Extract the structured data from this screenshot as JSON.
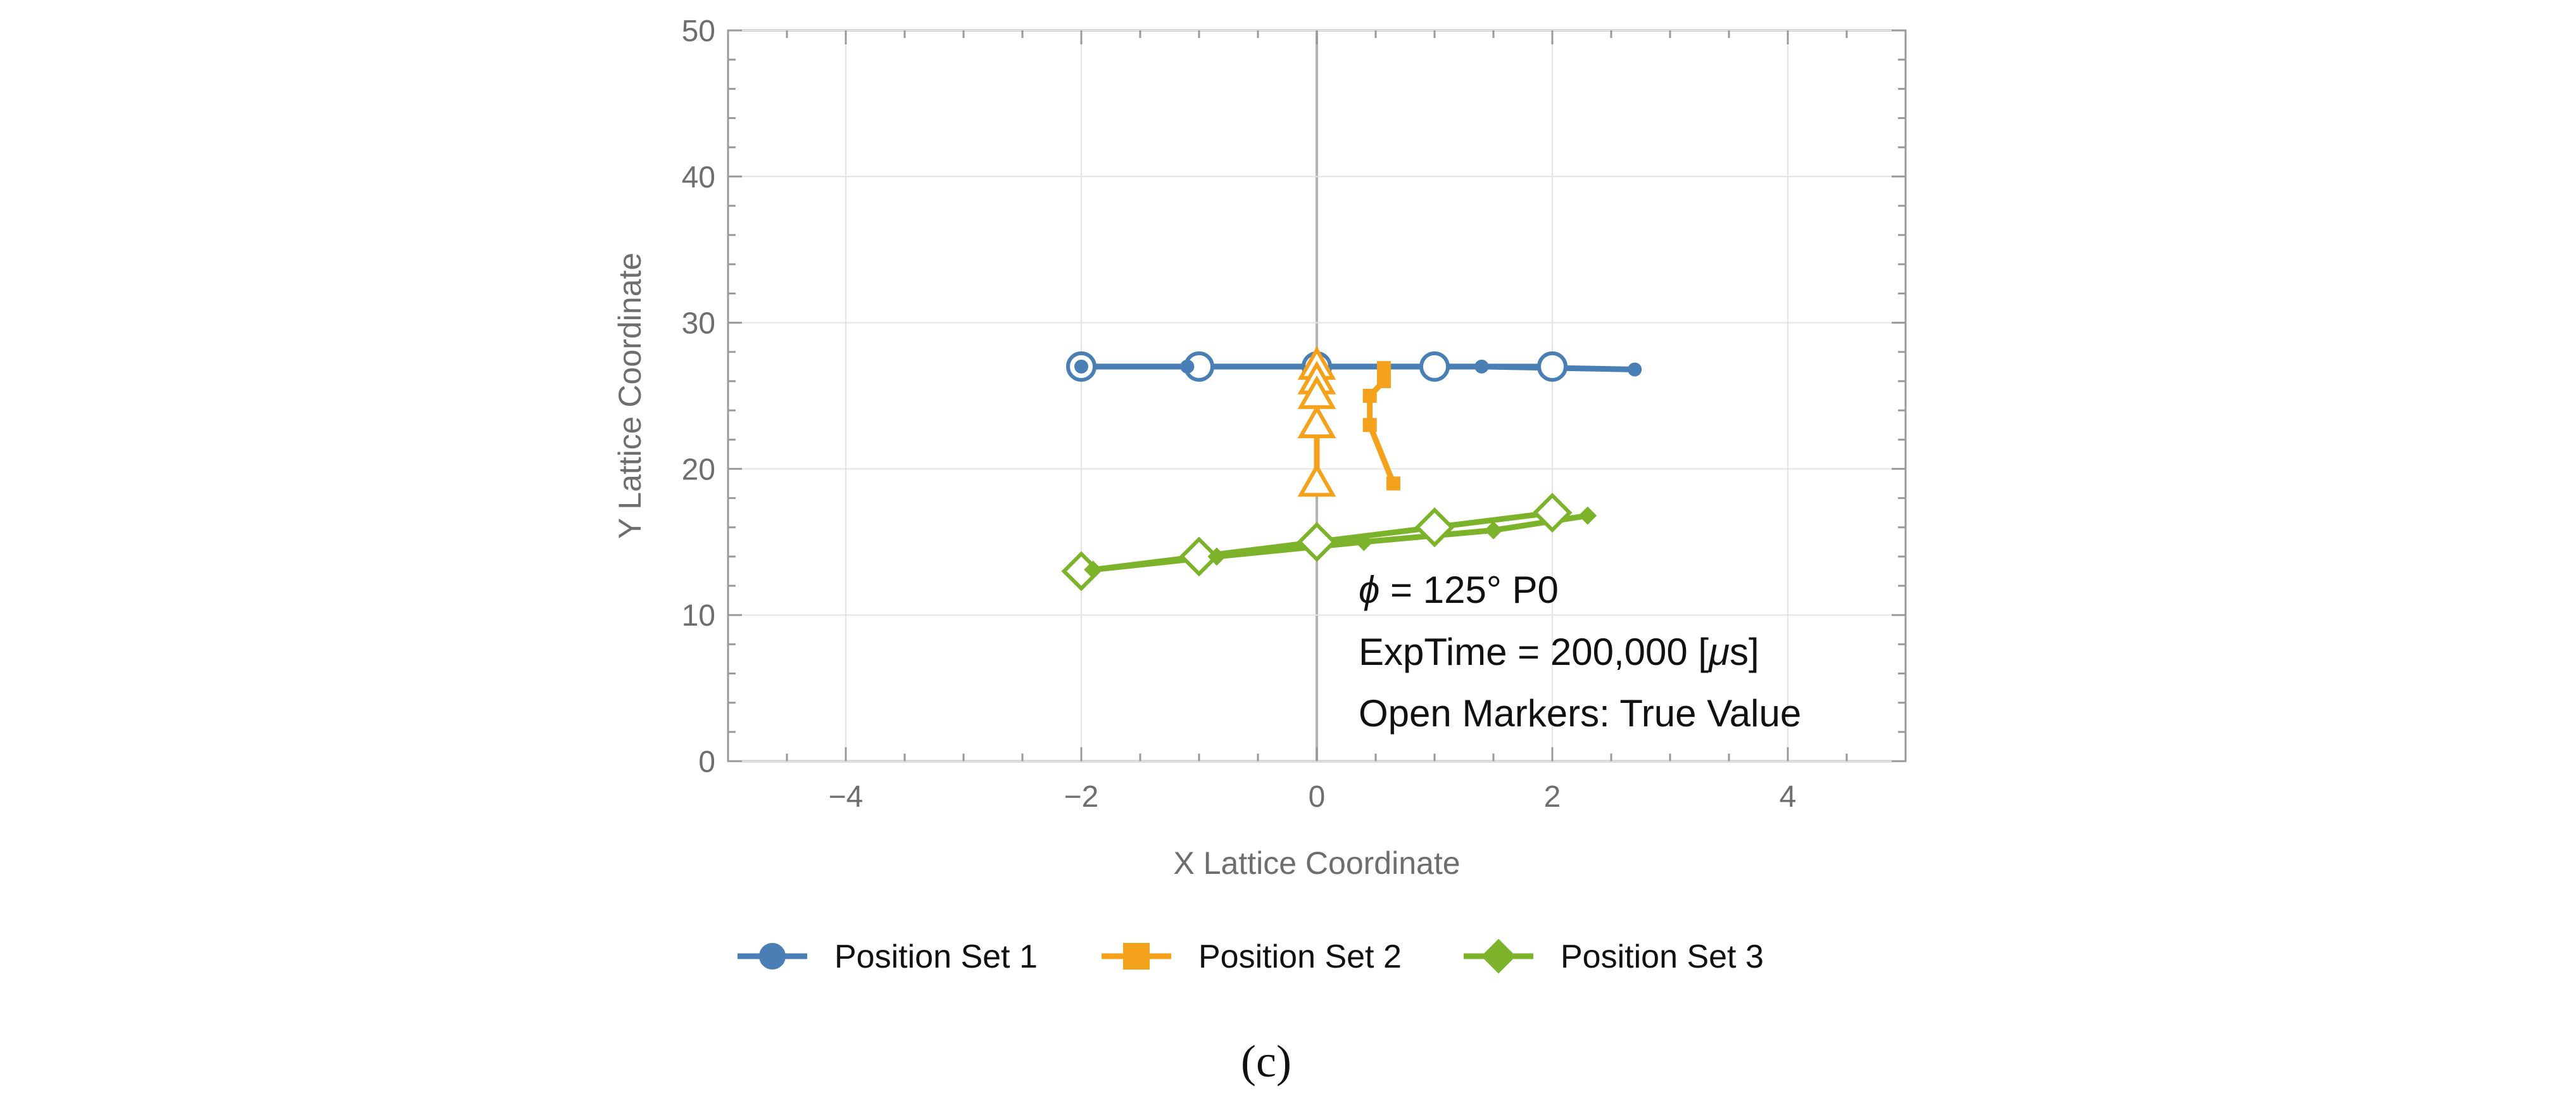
{
  "chart_data": {
    "type": "line",
    "xlabel": "X Lattice Coordinate",
    "ylabel": "Y Lattice Coordinate",
    "xlim": [
      -5,
      5
    ],
    "ylim": [
      0,
      50
    ],
    "x_ticks": [
      -4,
      -2,
      0,
      2,
      4
    ],
    "x_tick_labels": [
      "−4",
      "−2",
      "0",
      "2",
      "4"
    ],
    "y_ticks": [
      0,
      10,
      20,
      30,
      40,
      50
    ],
    "y_tick_labels": [
      "0",
      "10",
      "20",
      "30",
      "40",
      "50"
    ],
    "grid": true,
    "annotation": {
      "phi_symbol": "ϕ",
      "phi_rest": " = 125° P0",
      "exptime_prefix": "ExpTime = 200,000 [",
      "exptime_mu": "μ",
      "exptime_suffix": "s]",
      "markers_note": "Open Markers: True Value"
    },
    "legend_position": "bottom",
    "series": [
      {
        "name": "Position Set 1",
        "color": "#4a7fb5",
        "marker": "circle",
        "measured": [
          [
            -2.0,
            27.0
          ],
          [
            -1.1,
            27.0
          ],
          [
            1.4,
            27.0
          ],
          [
            2.7,
            26.8
          ]
        ],
        "true": [
          [
            -2,
            27
          ],
          [
            -1,
            27
          ],
          [
            0,
            27
          ],
          [
            1,
            27
          ],
          [
            2,
            27
          ]
        ]
      },
      {
        "name": "Position Set 2",
        "color": "#f4a21c",
        "marker": "square",
        "measured": [
          [
            0.57,
            26.9
          ],
          [
            0.57,
            26.0
          ],
          [
            0.45,
            25.0
          ],
          [
            0.45,
            23.0
          ],
          [
            0.65,
            19.0
          ]
        ],
        "true": [
          [
            0,
            27
          ],
          [
            0,
            26
          ],
          [
            0,
            25
          ],
          [
            0,
            23
          ],
          [
            0,
            19
          ]
        ]
      },
      {
        "name": "Position Set 3",
        "color": "#7cb32b",
        "marker": "diamond",
        "measured": [
          [
            -1.9,
            13.1
          ],
          [
            -0.85,
            14.0
          ],
          [
            0.4,
            15.0
          ],
          [
            1.5,
            15.8
          ],
          [
            2.3,
            16.8
          ]
        ],
        "true": [
          [
            -2,
            13
          ],
          [
            -1,
            14
          ],
          [
            0,
            15
          ],
          [
            1,
            16
          ],
          [
            2,
            17
          ]
        ]
      }
    ],
    "caption": "(c)"
  }
}
